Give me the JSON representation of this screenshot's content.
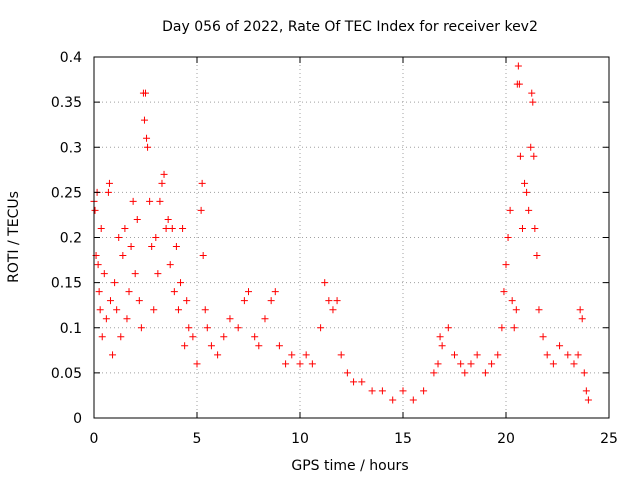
{
  "chart_data": {
    "type": "scatter",
    "title": "Day 056 of 2022, Rate Of TEC Index for receiver kev2",
    "xlabel": "GPS time / hours",
    "ylabel": "ROTI / TECUs",
    "xlim": [
      0,
      25
    ],
    "ylim": [
      0,
      0.4
    ],
    "x_ticks": [
      0,
      5,
      10,
      15,
      20,
      25
    ],
    "x_tick_labels": [
      "0",
      "5",
      "10",
      "15",
      "20",
      "25"
    ],
    "y_ticks": [
      0,
      0.05,
      0.1,
      0.15,
      0.2,
      0.25,
      0.3,
      0.35,
      0.4
    ],
    "y_tick_labels": [
      "0",
      "0.05",
      "0.1",
      "0.15",
      "0.2",
      "0.25",
      "0.3",
      "0.35",
      "0.4"
    ],
    "grid": true,
    "marker": "plus",
    "color": "#ff0000",
    "series": [
      {
        "points": [
          [
            0.0,
            0.24
          ],
          [
            0.05,
            0.23
          ],
          [
            0.1,
            0.18
          ],
          [
            0.15,
            0.25
          ],
          [
            0.2,
            0.17
          ],
          [
            0.25,
            0.14
          ],
          [
            0.3,
            0.12
          ],
          [
            0.35,
            0.21
          ],
          [
            0.4,
            0.09
          ],
          [
            0.5,
            0.16
          ],
          [
            0.6,
            0.11
          ],
          [
            0.7,
            0.25
          ],
          [
            0.75,
            0.26
          ],
          [
            0.8,
            0.13
          ],
          [
            0.9,
            0.07
          ],
          [
            1.0,
            0.15
          ],
          [
            1.1,
            0.12
          ],
          [
            1.2,
            0.2
          ],
          [
            1.3,
            0.09
          ],
          [
            1.4,
            0.18
          ],
          [
            1.5,
            0.21
          ],
          [
            1.6,
            0.11
          ],
          [
            1.7,
            0.14
          ],
          [
            1.8,
            0.19
          ],
          [
            1.9,
            0.24
          ],
          [
            2.0,
            0.16
          ],
          [
            2.1,
            0.22
          ],
          [
            2.2,
            0.13
          ],
          [
            2.3,
            0.1
          ],
          [
            2.4,
            0.36
          ],
          [
            2.45,
            0.33
          ],
          [
            2.5,
            0.36
          ],
          [
            2.55,
            0.31
          ],
          [
            2.6,
            0.3
          ],
          [
            2.7,
            0.24
          ],
          [
            2.8,
            0.19
          ],
          [
            2.9,
            0.12
          ],
          [
            3.0,
            0.2
          ],
          [
            3.1,
            0.16
          ],
          [
            3.2,
            0.24
          ],
          [
            3.3,
            0.26
          ],
          [
            3.4,
            0.27
          ],
          [
            3.5,
            0.21
          ],
          [
            3.6,
            0.22
          ],
          [
            3.7,
            0.17
          ],
          [
            3.8,
            0.21
          ],
          [
            3.9,
            0.14
          ],
          [
            4.0,
            0.19
          ],
          [
            4.1,
            0.12
          ],
          [
            4.2,
            0.15
          ],
          [
            4.3,
            0.21
          ],
          [
            4.4,
            0.08
          ],
          [
            4.5,
            0.13
          ],
          [
            4.6,
            0.1
          ],
          [
            4.8,
            0.09
          ],
          [
            5.0,
            0.06
          ],
          [
            5.2,
            0.23
          ],
          [
            5.25,
            0.26
          ],
          [
            5.3,
            0.18
          ],
          [
            5.4,
            0.12
          ],
          [
            5.5,
            0.1
          ],
          [
            5.7,
            0.08
          ],
          [
            6.0,
            0.07
          ],
          [
            6.3,
            0.09
          ],
          [
            6.6,
            0.11
          ],
          [
            7.0,
            0.1
          ],
          [
            7.3,
            0.13
          ],
          [
            7.5,
            0.14
          ],
          [
            7.8,
            0.09
          ],
          [
            8.0,
            0.08
          ],
          [
            8.3,
            0.11
          ],
          [
            8.6,
            0.13
          ],
          [
            8.8,
            0.14
          ],
          [
            9.0,
            0.08
          ],
          [
            9.3,
            0.06
          ],
          [
            9.6,
            0.07
          ],
          [
            10.0,
            0.06
          ],
          [
            10.3,
            0.07
          ],
          [
            10.6,
            0.06
          ],
          [
            11.0,
            0.1
          ],
          [
            11.2,
            0.15
          ],
          [
            11.4,
            0.13
          ],
          [
            11.6,
            0.12
          ],
          [
            11.8,
            0.13
          ],
          [
            12.0,
            0.07
          ],
          [
            12.3,
            0.05
          ],
          [
            12.6,
            0.04
          ],
          [
            13.0,
            0.04
          ],
          [
            13.5,
            0.03
          ],
          [
            14.0,
            0.03
          ],
          [
            14.5,
            0.02
          ],
          [
            15.0,
            0.03
          ],
          [
            15.5,
            0.02
          ],
          [
            16.0,
            0.03
          ],
          [
            16.5,
            0.05
          ],
          [
            16.7,
            0.06
          ],
          [
            16.8,
            0.09
          ],
          [
            16.9,
            0.08
          ],
          [
            17.2,
            0.1
          ],
          [
            17.5,
            0.07
          ],
          [
            17.8,
            0.06
          ],
          [
            18.0,
            0.05
          ],
          [
            18.3,
            0.06
          ],
          [
            18.6,
            0.07
          ],
          [
            19.0,
            0.05
          ],
          [
            19.3,
            0.06
          ],
          [
            19.6,
            0.07
          ],
          [
            19.8,
            0.1
          ],
          [
            19.9,
            0.14
          ],
          [
            20.0,
            0.17
          ],
          [
            20.1,
            0.2
          ],
          [
            20.2,
            0.23
          ],
          [
            20.3,
            0.13
          ],
          [
            20.4,
            0.1
          ],
          [
            20.5,
            0.12
          ],
          [
            20.55,
            0.37
          ],
          [
            20.6,
            0.39
          ],
          [
            20.65,
            0.37
          ],
          [
            20.7,
            0.29
          ],
          [
            20.8,
            0.21
          ],
          [
            20.9,
            0.26
          ],
          [
            21.0,
            0.25
          ],
          [
            21.1,
            0.23
          ],
          [
            21.2,
            0.3
          ],
          [
            21.25,
            0.36
          ],
          [
            21.3,
            0.35
          ],
          [
            21.35,
            0.29
          ],
          [
            21.4,
            0.21
          ],
          [
            21.5,
            0.18
          ],
          [
            21.6,
            0.12
          ],
          [
            21.8,
            0.09
          ],
          [
            22.0,
            0.07
          ],
          [
            22.3,
            0.06
          ],
          [
            22.6,
            0.08
          ],
          [
            23.0,
            0.07
          ],
          [
            23.3,
            0.06
          ],
          [
            23.5,
            0.07
          ],
          [
            23.6,
            0.12
          ],
          [
            23.7,
            0.11
          ],
          [
            23.8,
            0.05
          ],
          [
            23.9,
            0.03
          ],
          [
            24.0,
            0.02
          ]
        ]
      }
    ]
  }
}
